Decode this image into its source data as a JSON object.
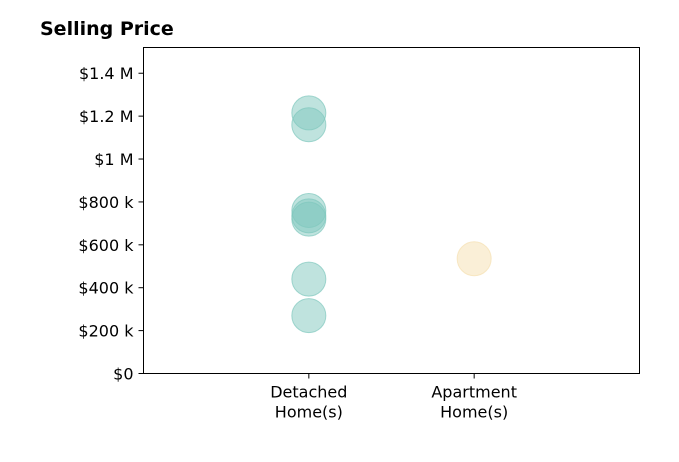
{
  "chart_data": {
    "type": "scatter",
    "title": "Selling Price",
    "xlabel": "",
    "ylabel": "",
    "categories": [
      [
        "Detached",
        "Home(s)"
      ],
      [
        "Apartment",
        "Home(s)"
      ]
    ],
    "y_ticks": [
      {
        "value": 0,
        "label": "$0"
      },
      {
        "value": 200000,
        "label": "$200 k"
      },
      {
        "value": 400000,
        "label": "$400 k"
      },
      {
        "value": 600000,
        "label": "$600 k"
      },
      {
        "value": 800000,
        "label": "$800 k"
      },
      {
        "value": 1000000,
        "label": "$1 M"
      },
      {
        "value": 1200000,
        "label": "$1.2 M"
      },
      {
        "value": 1400000,
        "label": "$1.4 M"
      }
    ],
    "ylim": [
      0,
      1520000
    ],
    "grid": false,
    "legend": "none",
    "series": [
      {
        "category_index": 0,
        "color": "#7fc7bd",
        "values": [
          1215000,
          1160000,
          760000,
          735000,
          720000,
          440000,
          270000
        ]
      },
      {
        "category_index": 1,
        "color": "#f5dfb0",
        "values": [
          535000
        ]
      }
    ]
  }
}
